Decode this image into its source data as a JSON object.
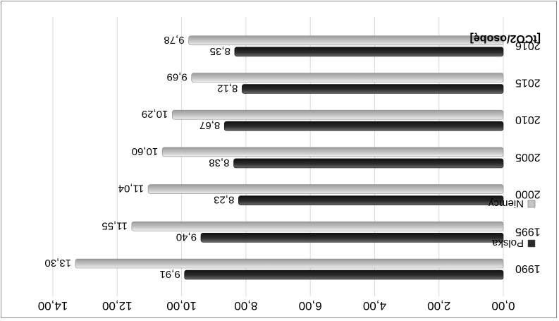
{
  "chart_data": {
    "type": "bar",
    "orientation": "horizontal",
    "mirrored": true,
    "ylabel": "[tCO2/osobę]",
    "categories": [
      "1990",
      "1995",
      "2000",
      "2005",
      "2010",
      "2015",
      "2016"
    ],
    "xlim": [
      0,
      14
    ],
    "ticks": [
      "0,00",
      "2,00",
      "4,00",
      "6,00",
      "8,00",
      "10,00",
      "12,00",
      "14,00"
    ],
    "tick_values": [
      0,
      2,
      4,
      6,
      8,
      10,
      12,
      14
    ],
    "grid": true,
    "legend_position": "right",
    "series": [
      {
        "name": "Polska",
        "color": "#2b2b2b",
        "values": [
          9.91,
          9.4,
          8.23,
          8.38,
          8.67,
          8.12,
          8.35
        ],
        "labels": [
          "9,91",
          "9,40",
          "8,23",
          "8,38",
          "8,67",
          "8,12",
          "8,35"
        ]
      },
      {
        "name": "Niemcy",
        "color": "#c4c4c4",
        "values": [
          13.3,
          11.55,
          11.04,
          10.6,
          10.29,
          9.69,
          9.78
        ],
        "labels": [
          "13,30",
          "11,55",
          "11,04",
          "10,60",
          "10,29",
          "9,69",
          "9,78"
        ]
      }
    ]
  }
}
